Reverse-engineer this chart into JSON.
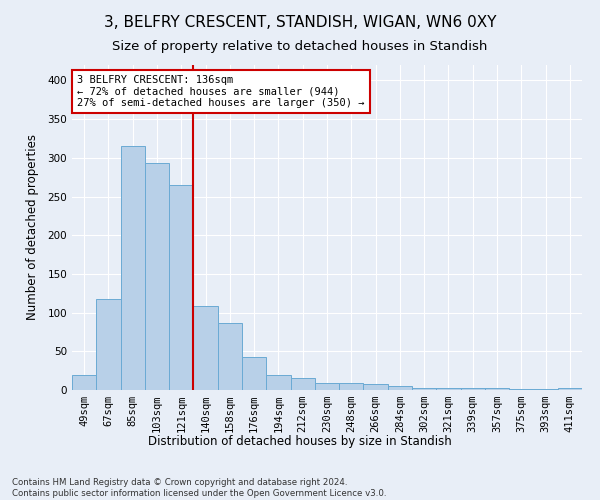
{
  "title": "3, BELFRY CRESCENT, STANDISH, WIGAN, WN6 0XY",
  "subtitle": "Size of property relative to detached houses in Standish",
  "xlabel": "Distribution of detached houses by size in Standish",
  "ylabel": "Number of detached properties",
  "categories": [
    "49sqm",
    "67sqm",
    "85sqm",
    "103sqm",
    "121sqm",
    "140sqm",
    "158sqm",
    "176sqm",
    "194sqm",
    "212sqm",
    "230sqm",
    "248sqm",
    "266sqm",
    "284sqm",
    "302sqm",
    "321sqm",
    "339sqm",
    "357sqm",
    "375sqm",
    "393sqm",
    "411sqm"
  ],
  "values": [
    20,
    118,
    315,
    293,
    265,
    108,
    86,
    43,
    20,
    15,
    9,
    9,
    8,
    5,
    3,
    2,
    2,
    2,
    1,
    1,
    3
  ],
  "bar_color": "#b8d0e8",
  "bar_edge_color": "#6aaad4",
  "vline_x": 4.5,
  "vline_color": "#cc0000",
  "annotation_text": "3 BELFRY CRESCENT: 136sqm\n← 72% of detached houses are smaller (944)\n27% of semi-detached houses are larger (350) →",
  "annotation_box_color": "#ffffff",
  "annotation_box_edge": "#cc0000",
  "ylim": [
    0,
    420
  ],
  "yticks": [
    0,
    50,
    100,
    150,
    200,
    250,
    300,
    350,
    400
  ],
  "footer_text": "Contains HM Land Registry data © Crown copyright and database right 2024.\nContains public sector information licensed under the Open Government Licence v3.0.",
  "background_color": "#e8eef7",
  "plot_background": "#e8eef7",
  "grid_color": "#ffffff",
  "title_fontsize": 11,
  "subtitle_fontsize": 9.5,
  "tick_fontsize": 7.5,
  "ylabel_fontsize": 8.5,
  "xlabel_fontsize": 8.5
}
